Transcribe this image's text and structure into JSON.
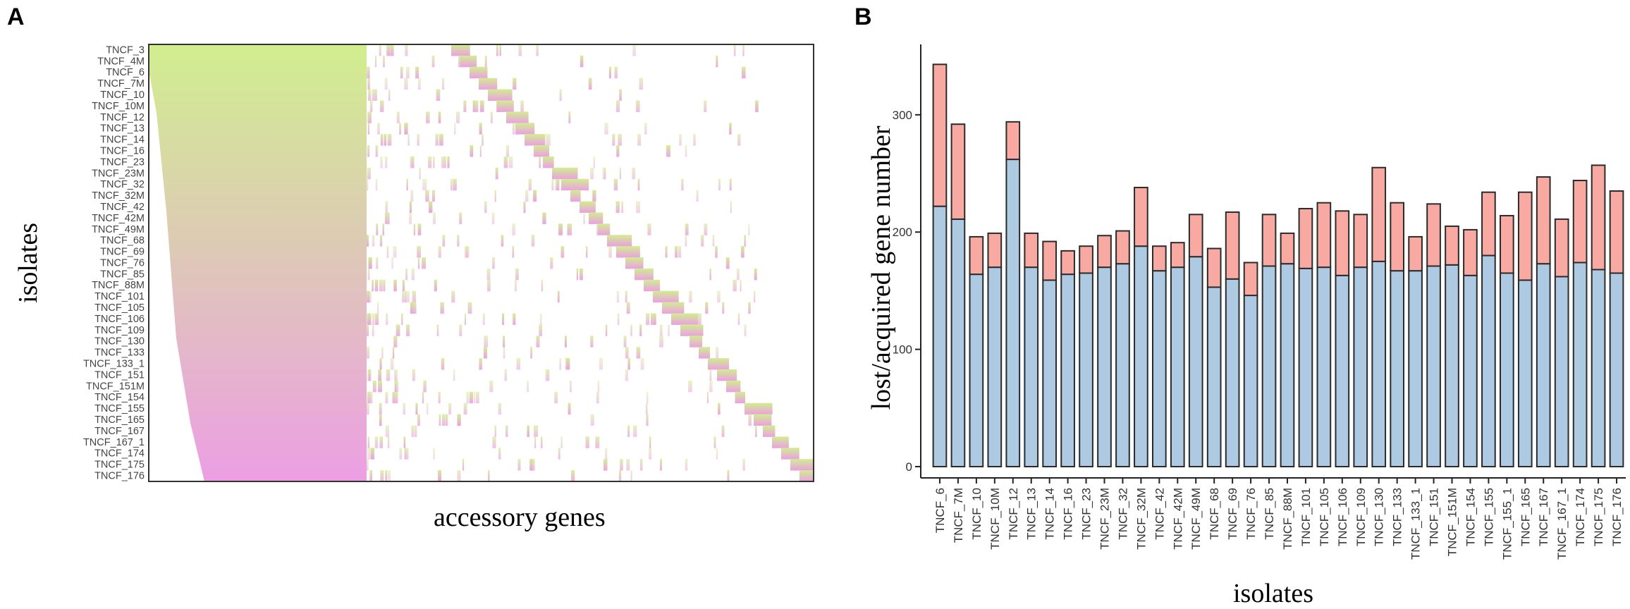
{
  "panels": {
    "a_label": "A",
    "b_label": "B"
  },
  "colors": {
    "lost": "#f7a9a2",
    "acquired": "#aec9e2",
    "stroke": "#2b2b2b",
    "heat_top": "#d1ee8f",
    "heat_bottom": "#ec9fe3"
  },
  "chart_data": [
    {
      "type": "heatmap",
      "title": "",
      "xlabel": "accessory genes",
      "ylabel": "isolates",
      "rows": [
        "TNCF_3",
        "TNCF_4M",
        "TNCF_6",
        "TNCF_7M",
        "TNCF_10",
        "TNCF_10M",
        "TNCF_12",
        "TNCF_13",
        "TNCF_14",
        "TNCF_16",
        "TNCF_23",
        "TNCF_23M",
        "TNCF_32",
        "TNCF_32M",
        "TNCF_42",
        "TNCF_42M",
        "TNCF_49M",
        "TNCF_68",
        "TNCF_69",
        "TNCF_76",
        "TNCF_85",
        "TNCF_88M",
        "TNCF_101",
        "TNCF_105",
        "TNCF_106",
        "TNCF_109",
        "TNCF_130",
        "TNCF_133",
        "TNCF_133_1",
        "TNCF_151",
        "TNCF_151M",
        "TNCF_154",
        "TNCF_155",
        "TNCF_165",
        "TNCF_167",
        "TNCF_167_1",
        "TNCF_174",
        "TNCF_175",
        "TNCF_176"
      ],
      "values": "presence/absence matrix of accessory genes (cells shown as colored marks, not individually labeled)"
    },
    {
      "type": "bar",
      "stacked": true,
      "title": "",
      "xlabel": "isolates",
      "ylabel": "lost/acquired gene number",
      "ylim": [
        0,
        345
      ],
      "yticks": [
        0,
        100,
        200,
        300
      ],
      "categories": [
        "TNCF_6",
        "TNCF_7M",
        "TNCF_10",
        "TNCF_10M",
        "TNCF_12",
        "TNCF_13",
        "TNCF_14",
        "TNCF_16",
        "TNCF_23",
        "TNCF_23M",
        "TNCF_32",
        "TNCF_32M",
        "TNCF_42",
        "TNCF_42M",
        "TNCF_49M",
        "TNCF_68",
        "TNCF_69",
        "TNCF_76",
        "TNCF_85",
        "TNCF_88M",
        "TNCF_101",
        "TNCF_105",
        "TNCF_106",
        "TNCF_109",
        "TNCF_130",
        "TNCF_133",
        "TNCF_133_1",
        "TNCF_151",
        "TNCF_151M",
        "TNCF_154",
        "TNCF_155",
        "TNCF_155_1",
        "TNCF_165",
        "TNCF_167",
        "TNCF_167_1",
        "TNCF_174",
        "TNCF_175",
        "TNCF_176"
      ],
      "series": [
        {
          "name": "acquired",
          "values": [
            222,
            211,
            164,
            170,
            262,
            170,
            159,
            164,
            165,
            170,
            173,
            188,
            167,
            170,
            179,
            153,
            160,
            146,
            171,
            173,
            169,
            170,
            163,
            170,
            175,
            167,
            167,
            171,
            172,
            163,
            180,
            165,
            159,
            173,
            162,
            174,
            168,
            165
          ]
        },
        {
          "name": "lost",
          "values": [
            121,
            81,
            32,
            29,
            32,
            29,
            33,
            20,
            23,
            27,
            28,
            50,
            21,
            21,
            36,
            33,
            57,
            28,
            44,
            26,
            51,
            55,
            55,
            45,
            80,
            58,
            29,
            53,
            33,
            39,
            54,
            49,
            75,
            74,
            49,
            70,
            89,
            70
          ]
        }
      ]
    }
  ]
}
